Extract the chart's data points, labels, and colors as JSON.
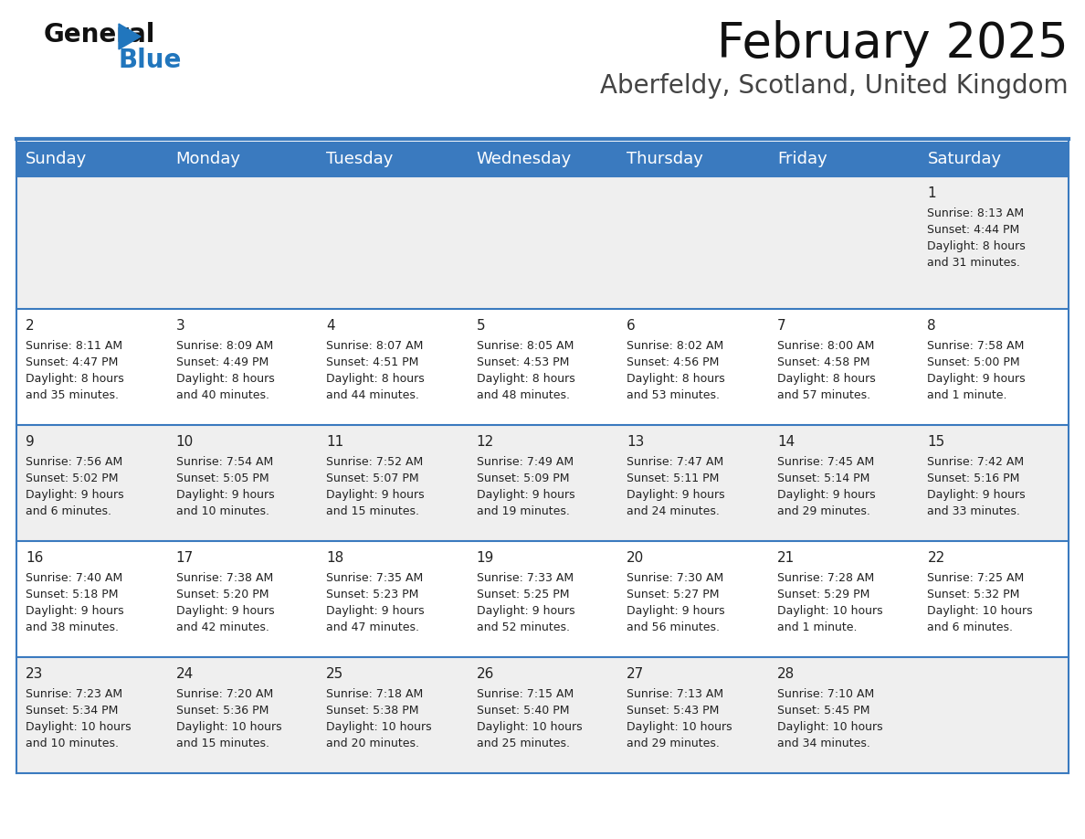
{
  "title": "February 2025",
  "subtitle": "Aberfeldy, Scotland, United Kingdom",
  "days_of_week": [
    "Sunday",
    "Monday",
    "Tuesday",
    "Wednesday",
    "Thursday",
    "Friday",
    "Saturday"
  ],
  "header_bg": "#3a7abf",
  "header_text": "#ffffff",
  "row_bg_odd": "#efefef",
  "row_bg_even": "#ffffff",
  "border_color": "#3a7abf",
  "text_color": "#222222",
  "day_number_color": "#222222",
  "cal_data": [
    [
      null,
      null,
      null,
      null,
      null,
      null,
      {
        "day": "1",
        "sunrise": "8:13 AM",
        "sunset": "4:44 PM",
        "daylight": "8 hours",
        "daylight2": "and 31 minutes."
      }
    ],
    [
      {
        "day": "2",
        "sunrise": "8:11 AM",
        "sunset": "4:47 PM",
        "daylight": "8 hours",
        "daylight2": "and 35 minutes."
      },
      {
        "day": "3",
        "sunrise": "8:09 AM",
        "sunset": "4:49 PM",
        "daylight": "8 hours",
        "daylight2": "and 40 minutes."
      },
      {
        "day": "4",
        "sunrise": "8:07 AM",
        "sunset": "4:51 PM",
        "daylight": "8 hours",
        "daylight2": "and 44 minutes."
      },
      {
        "day": "5",
        "sunrise": "8:05 AM",
        "sunset": "4:53 PM",
        "daylight": "8 hours",
        "daylight2": "and 48 minutes."
      },
      {
        "day": "6",
        "sunrise": "8:02 AM",
        "sunset": "4:56 PM",
        "daylight": "8 hours",
        "daylight2": "and 53 minutes."
      },
      {
        "day": "7",
        "sunrise": "8:00 AM",
        "sunset": "4:58 PM",
        "daylight": "8 hours",
        "daylight2": "and 57 minutes."
      },
      {
        "day": "8",
        "sunrise": "7:58 AM",
        "sunset": "5:00 PM",
        "daylight": "9 hours",
        "daylight2": "and 1 minute."
      }
    ],
    [
      {
        "day": "9",
        "sunrise": "7:56 AM",
        "sunset": "5:02 PM",
        "daylight": "9 hours",
        "daylight2": "and 6 minutes."
      },
      {
        "day": "10",
        "sunrise": "7:54 AM",
        "sunset": "5:05 PM",
        "daylight": "9 hours",
        "daylight2": "and 10 minutes."
      },
      {
        "day": "11",
        "sunrise": "7:52 AM",
        "sunset": "5:07 PM",
        "daylight": "9 hours",
        "daylight2": "and 15 minutes."
      },
      {
        "day": "12",
        "sunrise": "7:49 AM",
        "sunset": "5:09 PM",
        "daylight": "9 hours",
        "daylight2": "and 19 minutes."
      },
      {
        "day": "13",
        "sunrise": "7:47 AM",
        "sunset": "5:11 PM",
        "daylight": "9 hours",
        "daylight2": "and 24 minutes."
      },
      {
        "day": "14",
        "sunrise": "7:45 AM",
        "sunset": "5:14 PM",
        "daylight": "9 hours",
        "daylight2": "and 29 minutes."
      },
      {
        "day": "15",
        "sunrise": "7:42 AM",
        "sunset": "5:16 PM",
        "daylight": "9 hours",
        "daylight2": "and 33 minutes."
      }
    ],
    [
      {
        "day": "16",
        "sunrise": "7:40 AM",
        "sunset": "5:18 PM",
        "daylight": "9 hours",
        "daylight2": "and 38 minutes."
      },
      {
        "day": "17",
        "sunrise": "7:38 AM",
        "sunset": "5:20 PM",
        "daylight": "9 hours",
        "daylight2": "and 42 minutes."
      },
      {
        "day": "18",
        "sunrise": "7:35 AM",
        "sunset": "5:23 PM",
        "daylight": "9 hours",
        "daylight2": "and 47 minutes."
      },
      {
        "day": "19",
        "sunrise": "7:33 AM",
        "sunset": "5:25 PM",
        "daylight": "9 hours",
        "daylight2": "and 52 minutes."
      },
      {
        "day": "20",
        "sunrise": "7:30 AM",
        "sunset": "5:27 PM",
        "daylight": "9 hours",
        "daylight2": "and 56 minutes."
      },
      {
        "day": "21",
        "sunrise": "7:28 AM",
        "sunset": "5:29 PM",
        "daylight": "10 hours",
        "daylight2": "and 1 minute."
      },
      {
        "day": "22",
        "sunrise": "7:25 AM",
        "sunset": "5:32 PM",
        "daylight": "10 hours",
        "daylight2": "and 6 minutes."
      }
    ],
    [
      {
        "day": "23",
        "sunrise": "7:23 AM",
        "sunset": "5:34 PM",
        "daylight": "10 hours",
        "daylight2": "and 10 minutes."
      },
      {
        "day": "24",
        "sunrise": "7:20 AM",
        "sunset": "5:36 PM",
        "daylight": "10 hours",
        "daylight2": "and 15 minutes."
      },
      {
        "day": "25",
        "sunrise": "7:18 AM",
        "sunset": "5:38 PM",
        "daylight": "10 hours",
        "daylight2": "and 20 minutes."
      },
      {
        "day": "26",
        "sunrise": "7:15 AM",
        "sunset": "5:40 PM",
        "daylight": "10 hours",
        "daylight2": "and 25 minutes."
      },
      {
        "day": "27",
        "sunrise": "7:13 AM",
        "sunset": "5:43 PM",
        "daylight": "10 hours",
        "daylight2": "and 29 minutes."
      },
      {
        "day": "28",
        "sunrise": "7:10 AM",
        "sunset": "5:45 PM",
        "daylight": "10 hours",
        "daylight2": "and 34 minutes."
      },
      null
    ]
  ],
  "title_fontsize": 38,
  "subtitle_fontsize": 20,
  "header_fontsize": 13,
  "day_num_fontsize": 11,
  "cell_text_fontsize": 9
}
